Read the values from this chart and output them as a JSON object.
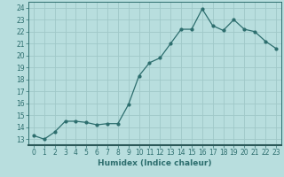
{
  "x": [
    0,
    1,
    2,
    3,
    4,
    5,
    6,
    7,
    8,
    9,
    10,
    11,
    12,
    13,
    14,
    15,
    16,
    17,
    18,
    19,
    20,
    21,
    22,
    23
  ],
  "y": [
    13.3,
    13.0,
    13.6,
    14.5,
    14.5,
    14.4,
    14.2,
    14.3,
    14.3,
    15.9,
    18.3,
    19.4,
    19.8,
    21.0,
    22.2,
    22.2,
    23.9,
    22.5,
    22.1,
    23.0,
    22.2,
    22.0,
    21.2,
    20.6
  ],
  "line_color": "#2d6e6e",
  "marker_color": "#2d6e6e",
  "bg_color": "#b8dede",
  "grid_color": "#a0c8c8",
  "axis_bar_color": "#2d5a5a",
  "xlabel": "Humidex (Indice chaleur)",
  "xlim": [
    -0.5,
    23.5
  ],
  "ylim": [
    12.5,
    24.5
  ],
  "yticks": [
    13,
    14,
    15,
    16,
    17,
    18,
    19,
    20,
    21,
    22,
    23,
    24
  ],
  "xticks": [
    0,
    1,
    2,
    3,
    4,
    5,
    6,
    7,
    8,
    9,
    10,
    11,
    12,
    13,
    14,
    15,
    16,
    17,
    18,
    19,
    20,
    21,
    22,
    23
  ],
  "xlabel_fontsize": 6.5,
  "tick_fontsize": 5.5
}
